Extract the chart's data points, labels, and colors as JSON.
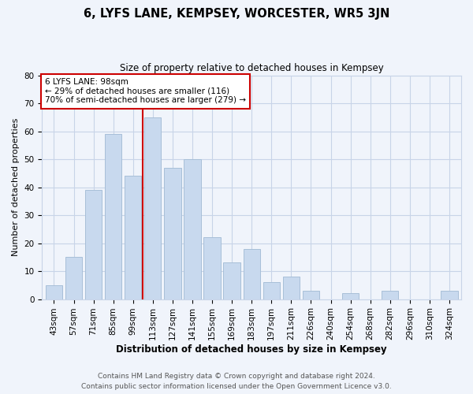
{
  "title": "6, LYFS LANE, KEMPSEY, WORCESTER, WR5 3JN",
  "subtitle": "Size of property relative to detached houses in Kempsey",
  "xlabel": "Distribution of detached houses by size in Kempsey",
  "ylabel": "Number of detached properties",
  "bar_labels": [
    "43sqm",
    "57sqm",
    "71sqm",
    "85sqm",
    "99sqm",
    "113sqm",
    "127sqm",
    "141sqm",
    "155sqm",
    "169sqm",
    "183sqm",
    "197sqm",
    "211sqm",
    "226sqm",
    "240sqm",
    "254sqm",
    "268sqm",
    "282sqm",
    "296sqm",
    "310sqm",
    "324sqm"
  ],
  "bar_heights": [
    5,
    15,
    39,
    59,
    44,
    65,
    47,
    50,
    22,
    13,
    18,
    6,
    8,
    3,
    0,
    2,
    0,
    3,
    0,
    0,
    3
  ],
  "bar_color": "#c8d9ee",
  "bar_edge_color": "#a8bfd8",
  "vline_x_idx": 4.5,
  "vline_color": "#cc0000",
  "annotation_line1": "6 LYFS LANE: 98sqm",
  "annotation_line2": "← 29% of detached houses are smaller (116)",
  "annotation_line3": "70% of semi-detached houses are larger (279) →",
  "annotation_box_color": "white",
  "annotation_box_edge": "#cc0000",
  "ylim": [
    0,
    80
  ],
  "yticks": [
    0,
    10,
    20,
    30,
    40,
    50,
    60,
    70,
    80
  ],
  "footer1": "Contains HM Land Registry data © Crown copyright and database right 2024.",
  "footer2": "Contains public sector information licensed under the Open Government Licence v3.0.",
  "bg_color": "#f0f4fb",
  "grid_color": "#c8d4e8",
  "title_fontsize": 10.5,
  "subtitle_fontsize": 8.5,
  "xlabel_fontsize": 8.5,
  "ylabel_fontsize": 8,
  "tick_fontsize": 7.5,
  "footer_fontsize": 6.5
}
